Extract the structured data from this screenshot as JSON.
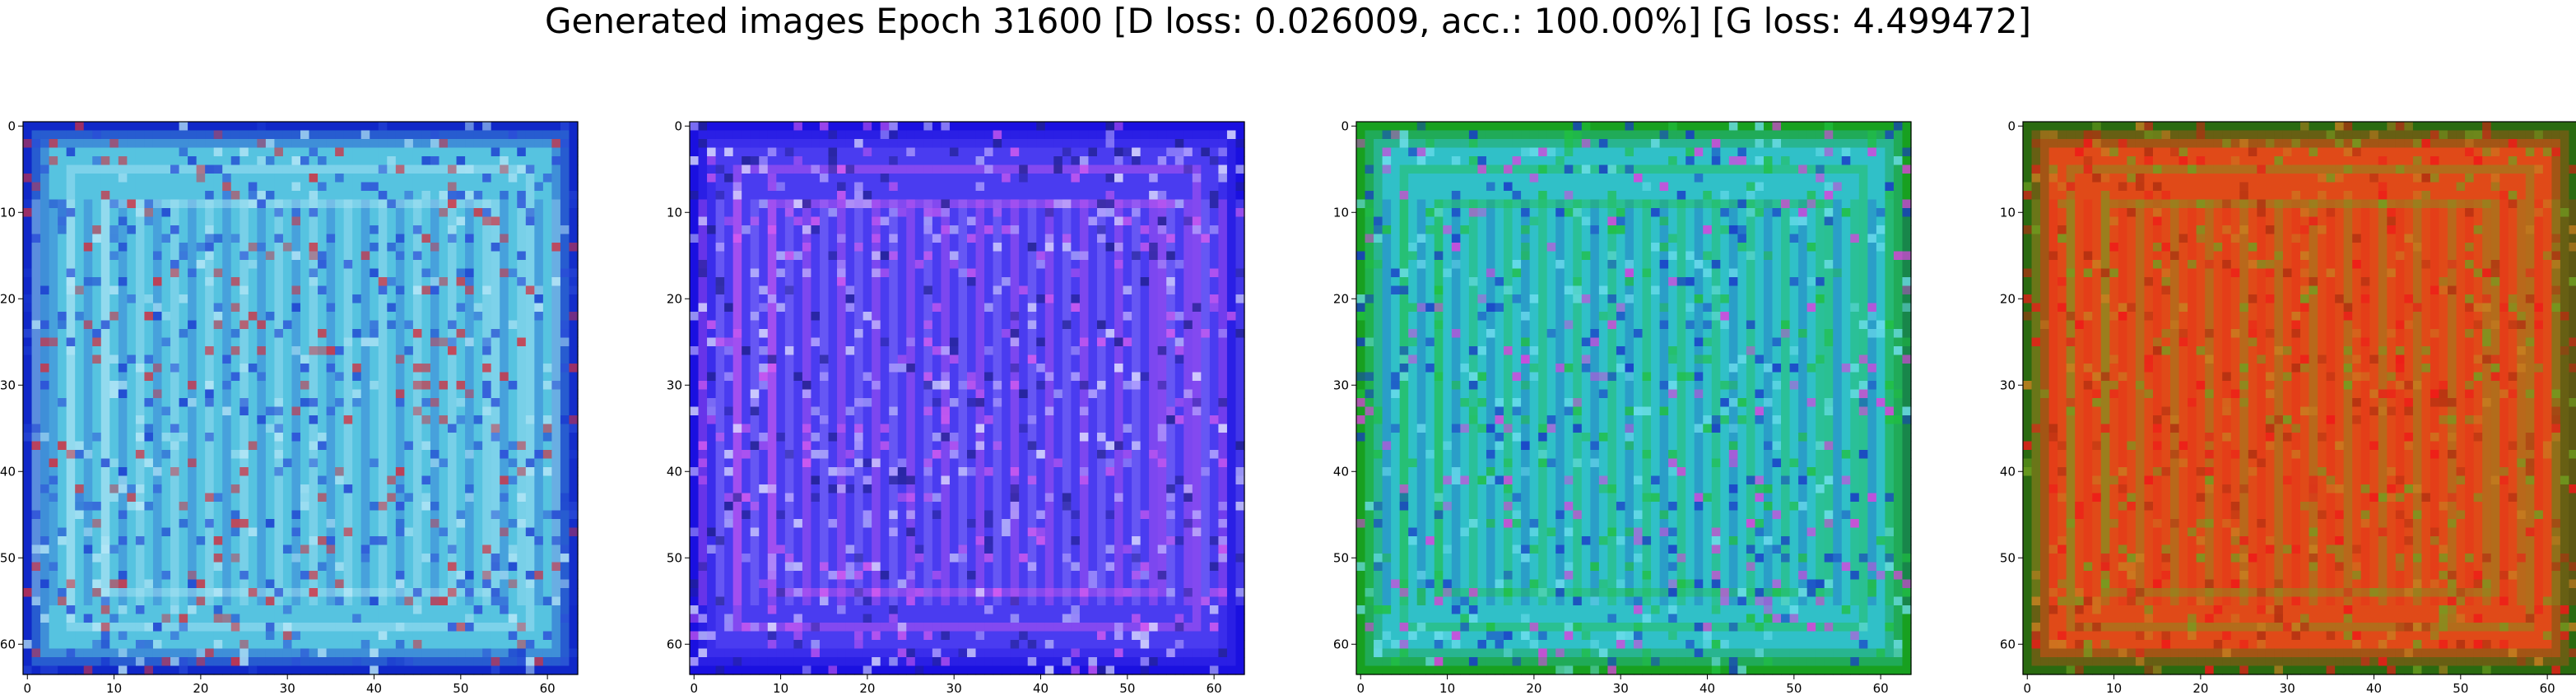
{
  "suptitle": "Generated images Epoch 31600 [D loss: 0.026009, acc.: 100.00%] [G loss: 4.499472]",
  "chart_data": [
    {
      "type": "heatmap",
      "title": "",
      "xlabel": "",
      "ylabel": "",
      "xlim": [
        0,
        63
      ],
      "ylim": [
        63,
        0
      ],
      "xticks": [
        "0",
        "10",
        "20",
        "30",
        "40",
        "50",
        "60"
      ],
      "yticks": [
        "0",
        "10",
        "20",
        "30",
        "40",
        "50",
        "60"
      ],
      "grid": false,
      "dominant_color": "#56c3e0",
      "edge_color": "#1028c8",
      "noise_colors": [
        "#1a3ad0",
        "#b8e8f8",
        "#2a4cd8",
        "#d03040"
      ]
    },
    {
      "type": "heatmap",
      "title": "",
      "xlabel": "",
      "ylabel": "",
      "xlim": [
        0,
        63
      ],
      "ylim": [
        63,
        0
      ],
      "xticks": [
        "0",
        "10",
        "20",
        "30",
        "40",
        "50",
        "60"
      ],
      "yticks": [
        "0",
        "10",
        "20",
        "30",
        "40",
        "50",
        "60"
      ],
      "grid": false,
      "dominant_color": "#4a3cf0",
      "edge_color": "#1a10e0",
      "noise_colors": [
        "#b8a8ff",
        "#d85cf0",
        "#e0e0ff",
        "#202090"
      ]
    },
    {
      "type": "heatmap",
      "title": "",
      "xlabel": "",
      "ylabel": "",
      "xlim": [
        0,
        63
      ],
      "ylim": [
        63,
        0
      ],
      "xticks": [
        "0",
        "10",
        "20",
        "30",
        "40",
        "50",
        "60"
      ],
      "yticks": [
        "0",
        "10",
        "20",
        "30",
        "40",
        "50",
        "60"
      ],
      "grid": false,
      "dominant_color": "#30c0c8",
      "edge_color": "#18a020",
      "noise_colors": [
        "#1838c8",
        "#20c040",
        "#e040e0",
        "#70e0f0"
      ]
    },
    {
      "type": "heatmap",
      "title": "",
      "xlabel": "",
      "ylabel": "",
      "xlim": [
        0,
        63
      ],
      "ylim": [
        63,
        0
      ],
      "xticks": [
        "0",
        "10",
        "20",
        "30",
        "40",
        "50",
        "60"
      ],
      "yticks": [
        "0",
        "10",
        "20",
        "30",
        "40",
        "50",
        "60"
      ],
      "grid": false,
      "dominant_color": "#e04a18",
      "edge_color": "#2a6a10",
      "noise_colors": [
        "#f01818",
        "#70a020",
        "#c88020",
        "#b03010"
      ]
    }
  ]
}
